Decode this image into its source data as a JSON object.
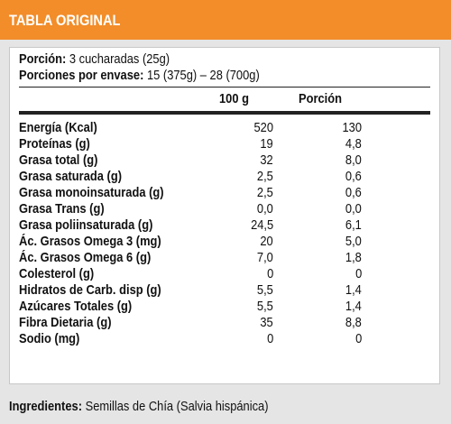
{
  "header": {
    "title": "TABLA ORIGINAL"
  },
  "serving": {
    "portion_label": "Porción:",
    "portion_value": "3 cucharadas (25g)",
    "per_package_label": "Porciones por envase:",
    "per_package_value": "15 (375g) – 28 (700g)"
  },
  "columns": {
    "per100": "100 g",
    "portion": "Porción"
  },
  "rows": [
    {
      "name": "Energía (Kcal)",
      "per100": "520",
      "portion": "130"
    },
    {
      "name": "Proteínas (g)",
      "per100": "19",
      "portion": "4,8"
    },
    {
      "name": "Grasa total (g)",
      "per100": "32",
      "portion": "8,0"
    },
    {
      "name": "Grasa saturada (g)",
      "per100": "2,5",
      "portion": "0,6"
    },
    {
      "name": "Grasa monoinsaturada (g)",
      "per100": "2,5",
      "portion": "0,6"
    },
    {
      "name": "Grasa Trans (g)",
      "per100": "0,0",
      "portion": "0,0"
    },
    {
      "name": "Grasa poliinsaturada (g)",
      "per100": "24,5",
      "portion": "6,1"
    },
    {
      "name": "Ác. Grasos Omega 3 (mg)",
      "per100": "20",
      "portion": "5,0"
    },
    {
      "name": "Ác. Grasos Omega 6 (g)",
      "per100": "7,0",
      "portion": "1,8"
    },
    {
      "name": "Colesterol (g)",
      "per100": "0",
      "portion": "0"
    },
    {
      "name": "Hidratos de Carb. disp (g)",
      "per100": "5,5",
      "portion": "1,4"
    },
    {
      "name": "Azúcares Totales (g)",
      "per100": "5,5",
      "portion": "1,4"
    },
    {
      "name": "Fibra Dietaria (g)",
      "per100": "35",
      "portion": "8,8"
    },
    {
      "name": "Sodio (mg)",
      "per100": "0",
      "portion": "0"
    }
  ],
  "ingredients": {
    "label": "Ingredientes:",
    "value": "Semillas de Chía (Salvia hispánica)"
  },
  "colors": {
    "header_bg": "#f28d2a",
    "page_bg": "#e5e5e5",
    "panel_bg": "#ffffff"
  }
}
